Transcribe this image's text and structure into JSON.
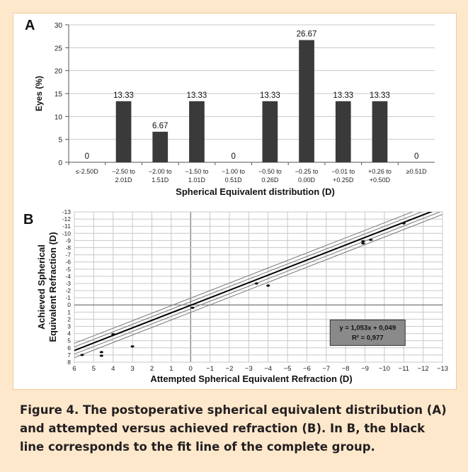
{
  "panels": {
    "a_letter": "A",
    "b_letter": "B"
  },
  "caption": "Figure 4. The postoperative spherical equivalent distribution (A) and attempted versus achieved refraction (B). In B, the black line corresponds to the fit line of the complete group.",
  "colors": {
    "bar": "#3a3a3a",
    "background": "#fde8cc",
    "grid": "#c8c8c8"
  },
  "chart_data": [
    {
      "type": "bar",
      "title": "",
      "xlabel": "Spherical Equivalent distribution (D)",
      "ylabel": "Eyes (%)",
      "ylim": [
        0,
        30
      ],
      "yticks": [
        0,
        5,
        10,
        15,
        20,
        25,
        30
      ],
      "grid": true,
      "categories": [
        [
          "≤-2.50D",
          ""
        ],
        [
          "−2.50 to",
          "2.01D"
        ],
        [
          "−2.00 to",
          "1.51D"
        ],
        [
          "−1.50 to",
          "1.01D"
        ],
        [
          "−1.00 to",
          "0.51D"
        ],
        [
          "−0.50 to",
          "0.26D"
        ],
        [
          "−0.25 to",
          "0.00D"
        ],
        [
          "−0.01 to",
          "+0.25D"
        ],
        [
          "+0.26 to",
          "+0.50D"
        ],
        [
          "≥0.51D",
          ""
        ]
      ],
      "values": [
        0,
        13.33,
        6.67,
        13.33,
        0,
        13.33,
        26.67,
        13.33,
        13.33,
        0
      ],
      "data_labels": [
        "0",
        "13.33",
        "6.67",
        "13.33",
        "0",
        "13.33",
        "26.67",
        "13.33",
        "13.33",
        "0"
      ]
    },
    {
      "type": "scatter",
      "xlabel": "Attempted Spherical Equivalent Refraction (D)",
      "ylabel": [
        "Achieved Spherical",
        "Equivalent Refraction (D)"
      ],
      "xlim": [
        6,
        -13
      ],
      "ylim": [
        8,
        -13
      ],
      "xticks": [
        6,
        5,
        4,
        3,
        2,
        1,
        0,
        -1,
        -2,
        -3,
        -4,
        -5,
        -6,
        -7,
        -8,
        -9,
        -10,
        -11,
        -12,
        -13
      ],
      "yticks": [
        -13,
        -12,
        -11,
        -10,
        -9,
        -8,
        -7,
        -6,
        -5,
        -4,
        -3,
        -2,
        -1,
        0,
        1,
        2,
        3,
        4,
        5,
        6,
        7,
        8
      ],
      "grid": true,
      "points": [
        {
          "x": 5.6,
          "y": 7.0
        },
        {
          "x": 4.6,
          "y": 6.6
        },
        {
          "x": 4.6,
          "y": 7.1
        },
        {
          "x": 3.0,
          "y": 5.8
        },
        {
          "x": 4.0,
          "y": 4.1
        },
        {
          "x": -0.1,
          "y": 0.4
        },
        {
          "x": -3.4,
          "y": -3.0
        },
        {
          "x": -4.0,
          "y": -2.7
        },
        {
          "x": -8.9,
          "y": -8.6
        },
        {
          "x": -8.9,
          "y": -8.9
        },
        {
          "x": -9.3,
          "y": -9.1
        },
        {
          "x": -11.0,
          "y": -11.4
        }
      ],
      "fit": {
        "slope": 1.053,
        "intercept": 0.049
      },
      "band_offsets": [
        -0.5,
        0.5,
        -1.0,
        1.0
      ],
      "annotation": [
        "y = 1,053x + 0,049",
        "R² = 0,977"
      ]
    }
  ]
}
